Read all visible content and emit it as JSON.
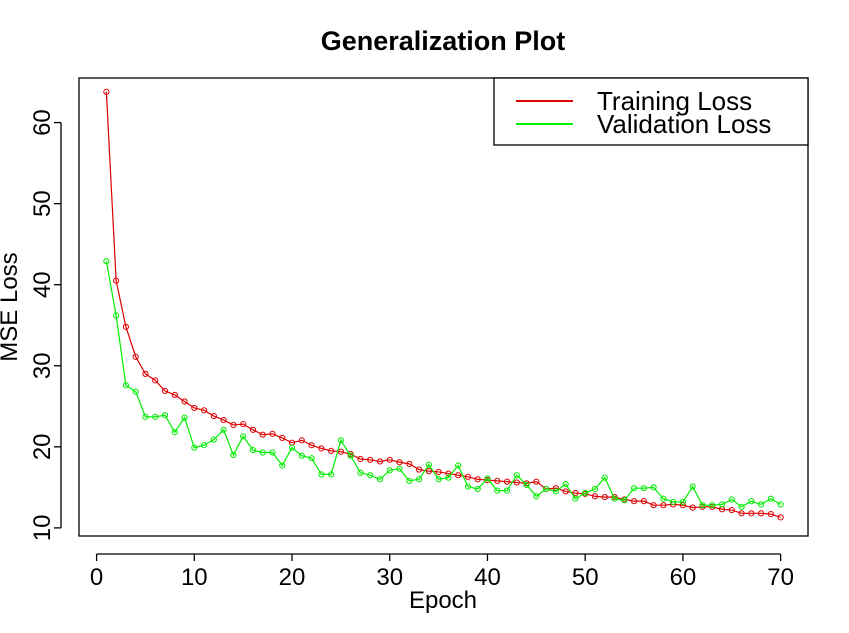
{
  "chart_data": {
    "type": "line",
    "title": "Generalization Plot",
    "xlabel": "Epoch",
    "ylabel": "MSE Loss",
    "xlim": [
      -1.8,
      72.8
    ],
    "ylim": [
      9.0,
      65.5
    ],
    "xticks": [
      0,
      10,
      20,
      30,
      40,
      50,
      60,
      70
    ],
    "yticks": [
      10,
      20,
      30,
      40,
      50,
      60
    ],
    "grid": false,
    "legend_position": "top-right",
    "series": [
      {
        "name": "Training Loss",
        "color": "#dd0000",
        "marker": "circle",
        "x": [
          1,
          2,
          3,
          4,
          5,
          6,
          7,
          8,
          9,
          10,
          11,
          12,
          13,
          14,
          15,
          16,
          17,
          18,
          19,
          20,
          21,
          22,
          23,
          24,
          25,
          26,
          27,
          28,
          29,
          30,
          31,
          32,
          33,
          34,
          35,
          36,
          37,
          38,
          39,
          40,
          41,
          42,
          43,
          44,
          45,
          46,
          47,
          48,
          49,
          50,
          51,
          52,
          53,
          54,
          55,
          56,
          57,
          58,
          59,
          60,
          61,
          62,
          63,
          64,
          65,
          66,
          67,
          68,
          69,
          70
        ],
        "values": [
          63.8,
          40.5,
          34.8,
          31.1,
          29.0,
          28.2,
          26.9,
          26.4,
          25.6,
          24.8,
          24.5,
          23.8,
          23.3,
          22.7,
          22.8,
          22.1,
          21.5,
          21.6,
          21.1,
          20.5,
          20.8,
          20.2,
          19.8,
          19.5,
          19.4,
          19.1,
          18.5,
          18.4,
          18.2,
          18.4,
          18.1,
          17.9,
          17.2,
          17.0,
          16.9,
          16.7,
          16.5,
          16.3,
          16.0,
          15.9,
          15.8,
          15.7,
          15.6,
          15.5,
          15.7,
          14.8,
          14.9,
          14.5,
          14.3,
          14.2,
          13.9,
          13.8,
          13.8,
          13.5,
          13.3,
          13.3,
          12.8,
          12.8,
          12.9,
          12.8,
          12.5,
          12.6,
          12.6,
          12.3,
          12.2,
          11.8,
          11.8,
          11.8,
          11.7,
          11.3
        ]
      },
      {
        "name": "Validation Loss",
        "color": "#00ee00",
        "marker": "circle",
        "x": [
          1,
          2,
          3,
          4,
          5,
          6,
          7,
          8,
          9,
          10,
          11,
          12,
          13,
          14,
          15,
          16,
          17,
          18,
          19,
          20,
          21,
          22,
          23,
          24,
          25,
          26,
          27,
          28,
          29,
          30,
          31,
          32,
          33,
          34,
          35,
          36,
          37,
          38,
          39,
          40,
          41,
          42,
          43,
          44,
          45,
          46,
          47,
          48,
          49,
          50,
          51,
          52,
          53,
          54,
          55,
          56,
          57,
          58,
          59,
          60,
          61,
          62,
          63,
          64,
          65,
          66,
          67,
          68,
          69,
          70
        ],
        "values": [
          42.9,
          36.2,
          27.6,
          26.8,
          23.7,
          23.7,
          23.9,
          21.8,
          23.6,
          19.9,
          20.2,
          20.9,
          22.1,
          19.0,
          21.3,
          19.6,
          19.3,
          19.3,
          17.7,
          19.9,
          18.9,
          18.6,
          16.6,
          16.6,
          20.8,
          18.9,
          16.8,
          16.5,
          16.0,
          17.1,
          17.3,
          15.8,
          16.0,
          17.8,
          16.0,
          16.2,
          17.7,
          15.1,
          14.8,
          16.1,
          14.6,
          14.6,
          16.5,
          15.3,
          13.9,
          14.8,
          14.5,
          15.4,
          13.6,
          14.3,
          14.8,
          16.2,
          13.6,
          13.4,
          14.9,
          14.9,
          15.0,
          13.6,
          13.2,
          13.2,
          15.1,
          12.8,
          12.8,
          12.9,
          13.5,
          12.6,
          13.3,
          12.9,
          13.6,
          12.9
        ]
      }
    ]
  }
}
